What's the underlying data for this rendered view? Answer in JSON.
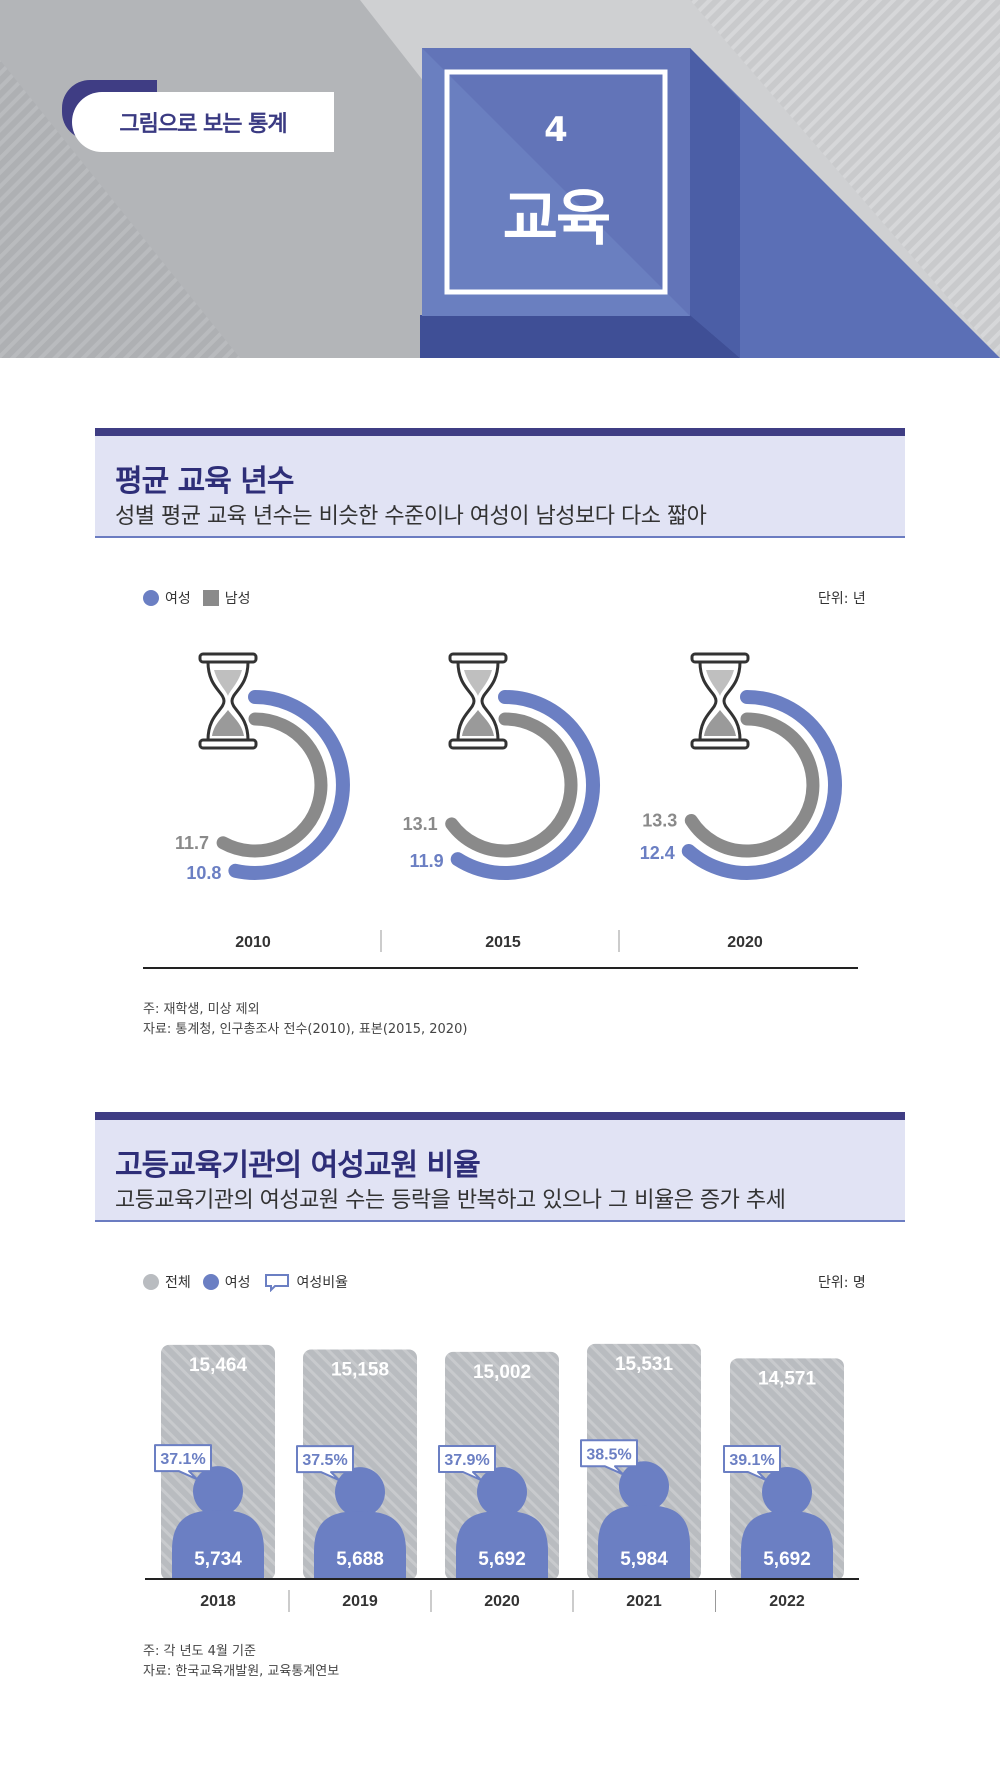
{
  "header": {
    "tag": "그림으로 보는 통계",
    "number": "4",
    "title": "교육"
  },
  "section1": {
    "title": "평균 교육 년수",
    "subtitle": "성별 평균 교육 년수는 비슷한 수준이나 여성이 남성보다 다소 짧아",
    "legend": {
      "female": "여성",
      "male": "남성"
    },
    "unit": "단위: 년",
    "note1": "주: 재학생, 미상 제외",
    "note2": "자료: 통계청, 인구총조사 전수(2010), 표본(2015, 2020)"
  },
  "section2": {
    "title": "고등교육기관의 여성교원 비율",
    "subtitle": "고등교육기관의 여성교원 수는 등락을 반복하고 있으나 그 비율은 증가 추세",
    "legend": {
      "total": "전체",
      "female": "여성",
      "ratio": "여성비율"
    },
    "unit": "단위: 명",
    "note1": "주: 각 년도 4월 기준",
    "note2": "자료: 한국교육개발원, 교육통계연보"
  },
  "colors": {
    "female": "#6b7fc3",
    "male": "#8a8a8a",
    "total": "#b9bcc0",
    "navy": "#3f3d84"
  },
  "chart_data": [
    {
      "type": "radial-bar",
      "categories": [
        "2010",
        "2015",
        "2020"
      ],
      "series": [
        {
          "name": "여성",
          "values": [
            10.8,
            11.9,
            12.4
          ],
          "labels": [
            "10.8",
            "11.9",
            "12.4"
          ]
        },
        {
          "name": "남성",
          "values": [
            11.7,
            13.1,
            13.3
          ],
          "labels": [
            "11.7",
            "13.1",
            "13.3"
          ]
        }
      ]
    },
    {
      "type": "bar",
      "categories": [
        "2018",
        "2019",
        "2020",
        "2021",
        "2022"
      ],
      "series": [
        {
          "name": "전체",
          "values": [
            15464,
            15158,
            15002,
            15531,
            14571
          ],
          "labels": [
            "15,464",
            "15,158",
            "15,002",
            "15,531",
            "14,571"
          ]
        },
        {
          "name": "여성",
          "values": [
            5734,
            5688,
            5692,
            5984,
            5692
          ],
          "labels": [
            "5,734",
            "5,688",
            "5,692",
            "5,984",
            "5,692"
          ]
        },
        {
          "name": "여성비율",
          "values": [
            37.1,
            37.5,
            37.9,
            38.5,
            39.1
          ],
          "labels": [
            "37.1%",
            "37.5%",
            "37.9%",
            "38.5%",
            "39.1%"
          ]
        }
      ]
    }
  ]
}
